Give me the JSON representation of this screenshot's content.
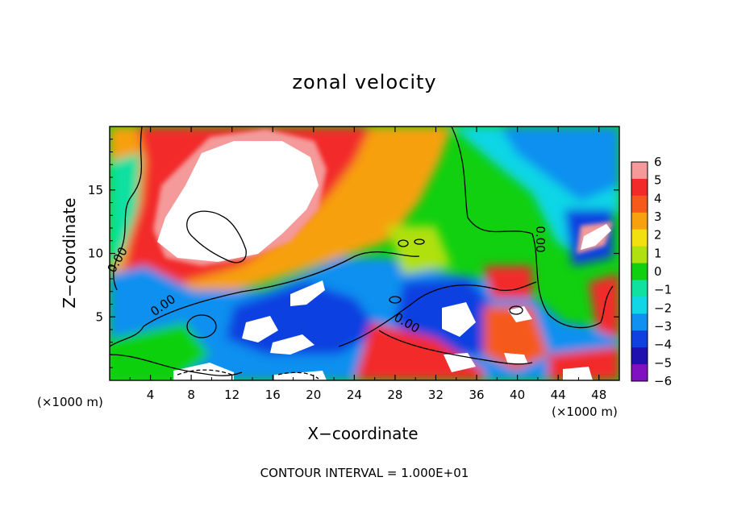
{
  "chart_data": {
    "type": "heatmap",
    "title": "zonal velocity",
    "xlabel": "X−coordinate",
    "ylabel": "Z−coordinate",
    "x_unit": "(×1000 m)",
    "y_unit": "(×1000 m)",
    "footnote": "CONTOUR INTERVAL = 1.000E+01",
    "xlim": [
      0,
      50
    ],
    "ylim": [
      0,
      20
    ],
    "x_ticks": [
      4,
      8,
      12,
      16,
      20,
      24,
      28,
      32,
      36,
      40,
      44,
      48
    ],
    "y_ticks": [
      5,
      10,
      15
    ],
    "colorbar": {
      "min": -6,
      "max": 6,
      "ticks": [
        "6",
        "5",
        "4",
        "3",
        "2",
        "1",
        "0",
        "−1",
        "−2",
        "−3",
        "−4",
        "−5",
        "−6"
      ],
      "colors": [
        "#f59a9a",
        "#f22a2a",
        "#f55a1a",
        "#f7a010",
        "#f2e010",
        "#b0e010",
        "#10d010",
        "#10e0a0",
        "#10d6e6",
        "#1090f0",
        "#1040e0",
        "#2010b0",
        "#8010c0"
      ]
    },
    "contour_labels": [
      "0.00",
      "0.00",
      "0.00",
      "0.00"
    ],
    "grid": false
  }
}
